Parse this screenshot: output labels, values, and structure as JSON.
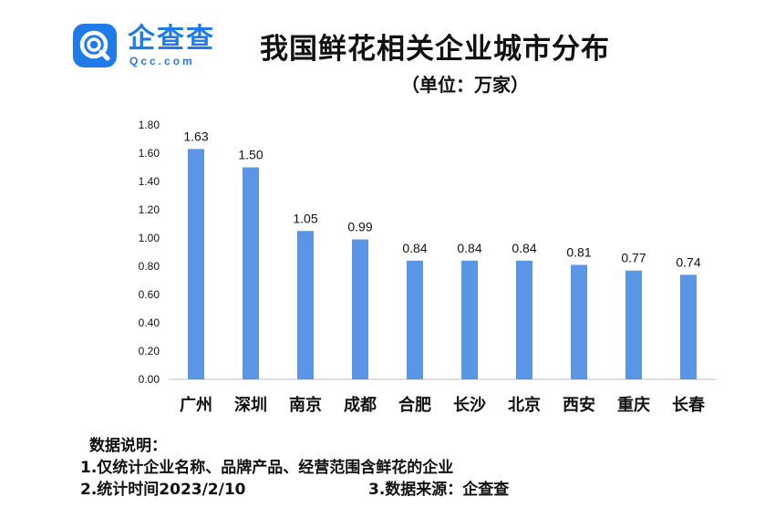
{
  "logo": {
    "text": "企查查",
    "sub": "Qcc.com"
  },
  "title": "我国鲜花相关企业城市分布",
  "unit": "（单位：万家）",
  "chart_data": {
    "type": "bar",
    "categories": [
      "广州",
      "深圳",
      "南京",
      "成都",
      "合肥",
      "长沙",
      "北京",
      "西安",
      "重庆",
      "长春"
    ],
    "values": [
      1.63,
      1.5,
      1.05,
      0.99,
      0.84,
      0.84,
      0.84,
      0.81,
      0.77,
      0.74
    ],
    "value_labels": [
      "1.63",
      "1.50",
      "1.05",
      "0.99",
      "0.84",
      "0.84",
      "0.84",
      "0.81",
      "0.77",
      "0.74"
    ],
    "ylim": [
      0,
      1.8
    ],
    "yticks": [
      "0.00",
      "0.20",
      "0.40",
      "0.60",
      "0.80",
      "1.00",
      "1.20",
      "1.40",
      "1.60",
      "1.80"
    ],
    "grid": false,
    "bar_color": "#5b95e5",
    "axis_color": "#bfbfbf"
  },
  "notes": {
    "heading": "数据说明：",
    "line1": "1.仅统计企业名称、品牌产品、经营范围含鲜花的企业",
    "line2": "2.统计时间2023/2/10",
    "line3": "3.数据来源：企查查"
  }
}
